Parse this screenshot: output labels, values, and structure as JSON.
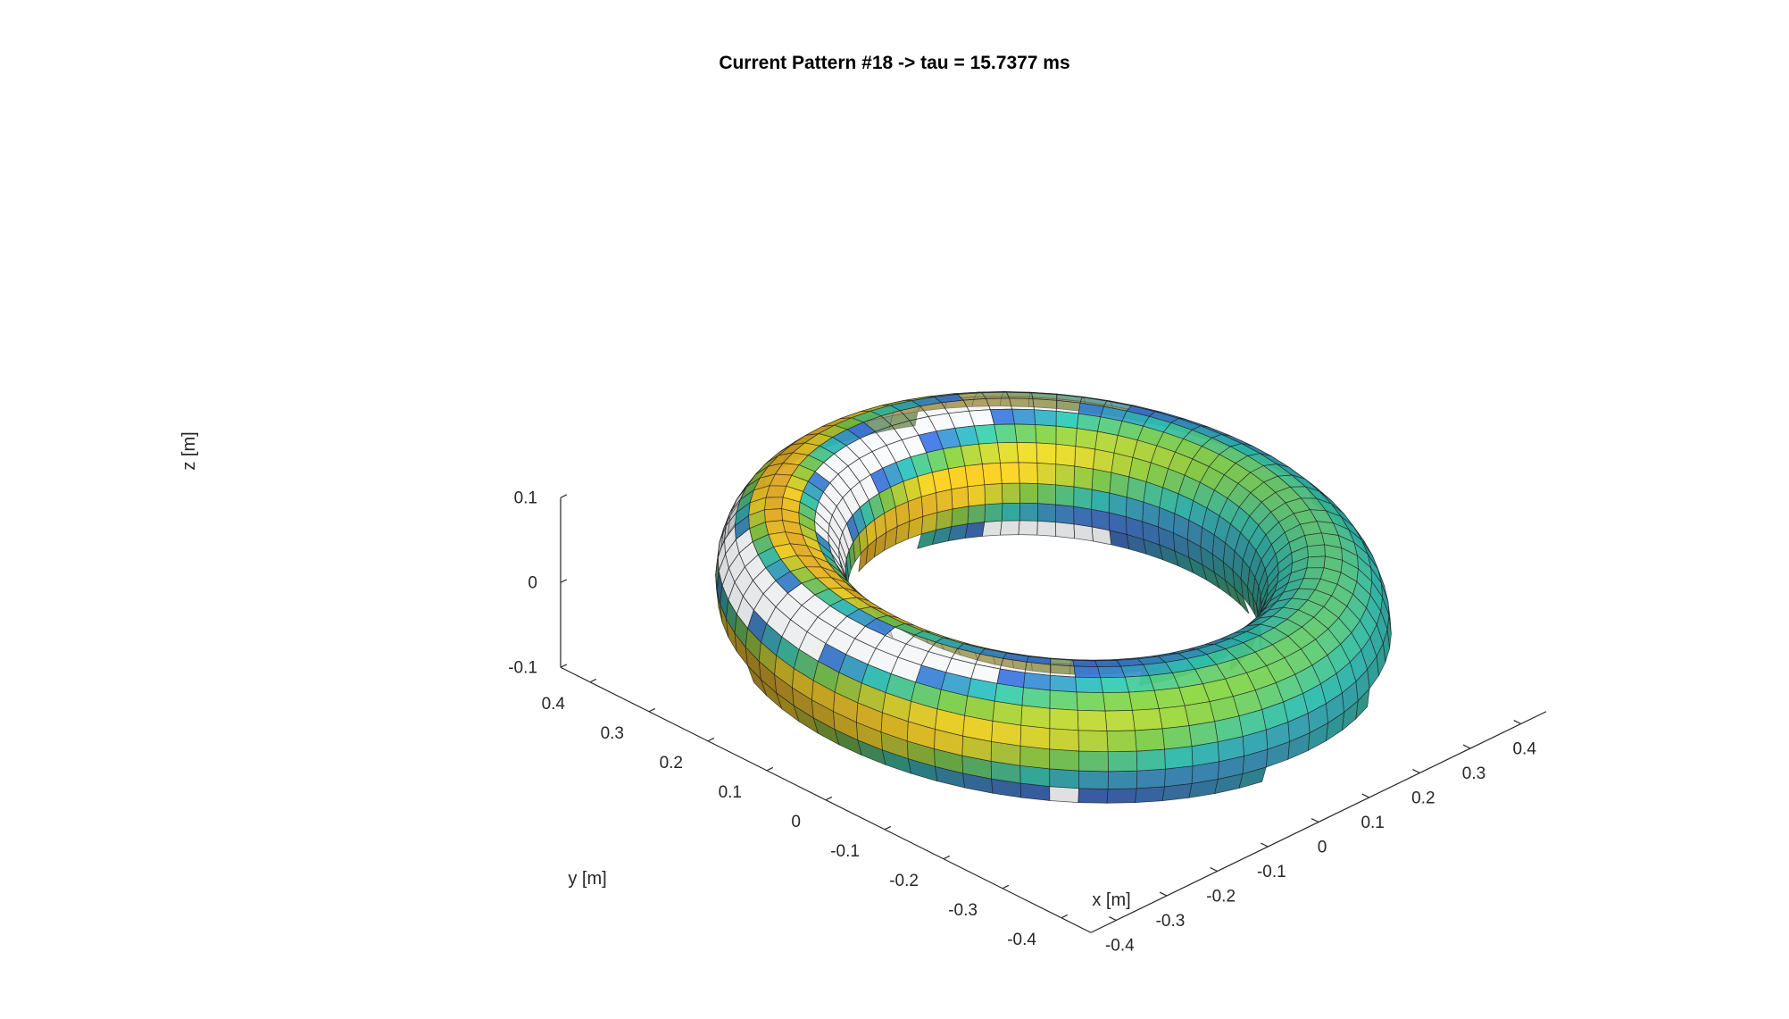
{
  "chart_data": {
    "type": "surface3d",
    "title": "Current Pattern #18 -> tau = 15.7377 ms",
    "xlabel": "x [m]",
    "ylabel": "y [m]",
    "zlabel": "z [m]",
    "x_ticks": [
      "-0.4",
      "-0.3",
      "-0.2",
      "-0.1",
      "0",
      "0.1",
      "0.2",
      "0.3",
      "0.4"
    ],
    "y_ticks": [
      "-0.4",
      "-0.3",
      "-0.2",
      "-0.1",
      "0",
      "0.1",
      "0.2",
      "0.3",
      "0.4"
    ],
    "z_ticks": [
      "-0.1",
      "0",
      "0.1"
    ],
    "xlim": [
      -0.45,
      0.45
    ],
    "ylim": [
      -0.45,
      0.45
    ],
    "zlim": [
      -0.1,
      0.1
    ],
    "torus": {
      "major_radius": 0.35,
      "minor_radius": 0.085
    },
    "colors": {
      "yellow": "#e6c21a",
      "orange": "#d9a21f",
      "green": "#74b83a",
      "teal": "#2ab3a5",
      "blue": "#3a68c8",
      "shell": "#cfd3d8"
    }
  }
}
